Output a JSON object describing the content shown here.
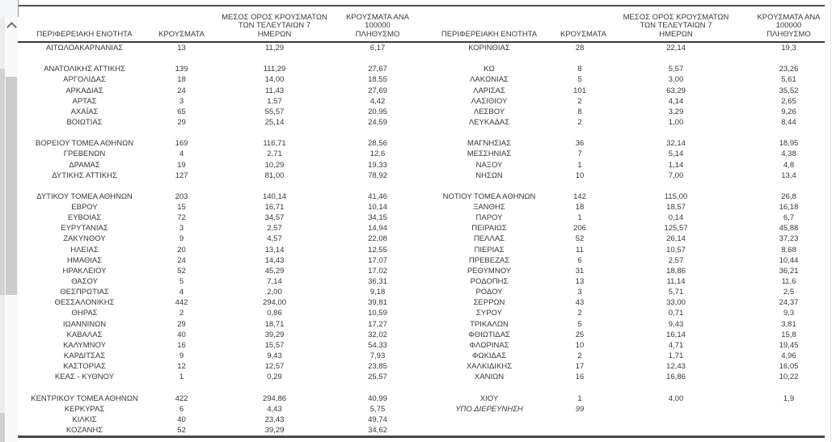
{
  "scrollbar": {
    "up_icon": "chevron-up"
  },
  "headers": {
    "region": "ΠΕΡΙΦΕΡΕΙΑΚΗ ΕΝΟΤΗΤΑ",
    "cases": "ΚΡΟΥΣΜΑΤΑ",
    "avg7": "ΜΕΣΟΣ ΟΡΟΣ ΚΡΟΥΣΜΑΤΩΝ\nΤΩΝ ΤΕΛΕΥΤΑΙΩΝ 7\nΗΜΕΡΩΝ",
    "per100k": "ΚΡΟΥΣΜΑΤΑ ΑΝΑ 100000\nΠΛΗΘΥΣΜΟ"
  },
  "rows": [
    {
      "l": {
        "region": "ΑΙΤΩΛΟΑΚΑΡΝΑΝΙΑΣ",
        "cases": "13",
        "avg7": "11,29",
        "per100k": "6,17"
      },
      "r": {
        "region": "ΚΟΡΙΝΘΙΑΣ",
        "cases": "28",
        "avg7": "22,14",
        "per100k": "19,3"
      }
    },
    {
      "l": {},
      "r": {}
    },
    {
      "l": {
        "region": "ΑΝΑΤΟΛΙΚΗΣ ΑΤΤΙΚΗΣ",
        "cases": "139",
        "avg7": "111,29",
        "per100k": "27,67"
      },
      "r": {
        "region": "ΚΩ",
        "cases": "8",
        "avg7": "5,57",
        "per100k": "23,26"
      }
    },
    {
      "l": {
        "region": "ΑΡΓΟΛΙΔΑΣ",
        "cases": "18",
        "avg7": "14,00",
        "per100k": "18,55"
      },
      "r": {
        "region": "ΛΑΚΩΝΙΑΣ",
        "cases": "5",
        "avg7": "3,00",
        "per100k": "5,61"
      }
    },
    {
      "l": {
        "region": "ΑΡΚΑΔΙΑΣ",
        "cases": "24",
        "avg7": "11,43",
        "per100k": "27,69"
      },
      "r": {
        "region": "ΛΑΡΙΣΑΣ",
        "cases": "101",
        "avg7": "63,29",
        "per100k": "35,52"
      }
    },
    {
      "l": {
        "region": "ΑΡΤΑΣ",
        "cases": "3",
        "avg7": "1,57",
        "per100k": "4,42"
      },
      "r": {
        "region": "ΛΑΣΙΘΙΟΥ",
        "cases": "2",
        "avg7": "4,14",
        "per100k": "2,65"
      }
    },
    {
      "l": {
        "region": "ΑΧΑΪΑΣ",
        "cases": "65",
        "avg7": "55,57",
        "per100k": "20,95"
      },
      "r": {
        "region": "ΛΕΣΒΟΥ",
        "cases": "8",
        "avg7": "3,29",
        "per100k": "9,26"
      }
    },
    {
      "l": {
        "region": "ΒΟΙΩΤΙΑΣ",
        "cases": "29",
        "avg7": "25,14",
        "per100k": "24,59"
      },
      "r": {
        "region": "ΛΕΥΚΑΔΑΣ",
        "cases": "2",
        "avg7": "1,00",
        "per100k": "8,44"
      }
    },
    {
      "l": {},
      "r": {}
    },
    {
      "l": {
        "region": "ΒΟΡΕΙΟΥ ΤΟΜΕΑ ΑΘΗΝΩΝ",
        "cases": "169",
        "avg7": "116,71",
        "per100k": "28,56"
      },
      "r": {
        "region": "ΜΑΓΝΗΣΙΑΣ",
        "cases": "36",
        "avg7": "32,14",
        "per100k": "18,95"
      }
    },
    {
      "l": {
        "region": "ΓΡΕΒΕΝΩΝ",
        "cases": "4",
        "avg7": "2,71",
        "per100k": "12,6"
      },
      "r": {
        "region": "ΜΕΣΣΗΝΙΑΣ",
        "cases": "7",
        "avg7": "5,14",
        "per100k": "4,38"
      }
    },
    {
      "l": {
        "region": "ΔΡΑΜΑΣ",
        "cases": "19",
        "avg7": "10,29",
        "per100k": "19,33"
      },
      "r": {
        "region": "ΝΑΞΟΥ",
        "cases": "1",
        "avg7": "1,14",
        "per100k": "4,8"
      }
    },
    {
      "l": {
        "region": "ΔΥΤΙΚΗΣ ΑΤΤΙΚΗΣ",
        "cases": "127",
        "avg7": "81,00",
        "per100k": "78,92"
      },
      "r": {
        "region": "ΝΗΣΩΝ",
        "cases": "10",
        "avg7": "7,00",
        "per100k": "13,4"
      }
    },
    {
      "l": {},
      "r": {}
    },
    {
      "l": {
        "region": "ΔΥΤΙΚΟΥ ΤΟΜΕΑ ΑΘΗΝΩΝ",
        "cases": "203",
        "avg7": "140,14",
        "per100k": "41,46"
      },
      "r": {
        "region": "ΝΟΤΙΟΥ ΤΟΜΕΑ ΑΘΗΝΩΝ",
        "cases": "142",
        "avg7": "115,00",
        "per100k": "26,8"
      }
    },
    {
      "l": {
        "region": "ΕΒΡΟΥ",
        "cases": "15",
        "avg7": "16,71",
        "per100k": "10,14"
      },
      "r": {
        "region": "ΞΑΝΘΗΣ",
        "cases": "18",
        "avg7": "18,57",
        "per100k": "16,18"
      }
    },
    {
      "l": {
        "region": "ΕΥΒΟΙΑΣ",
        "cases": "72",
        "avg7": "34,57",
        "per100k": "34,15"
      },
      "r": {
        "region": "ΠΑΡΟΥ",
        "cases": "1",
        "avg7": "0,14",
        "per100k": "6,7"
      }
    },
    {
      "l": {
        "region": "ΕΥΡΥΤΑΝΙΑΣ",
        "cases": "3",
        "avg7": "2,57",
        "per100k": "14,94"
      },
      "r": {
        "region": "ΠΕΙΡΑΙΩΣ",
        "cases": "206",
        "avg7": "125,57",
        "per100k": "45,88"
      }
    },
    {
      "l": {
        "region": "ΖΑΚΥΝΘΟΥ",
        "cases": "9",
        "avg7": "4,57",
        "per100k": "22,08"
      },
      "r": {
        "region": "ΠΕΛΛΑΣ",
        "cases": "52",
        "avg7": "26,14",
        "per100k": "37,23"
      }
    },
    {
      "l": {
        "region": "ΗΛΕΙΑΣ",
        "cases": "20",
        "avg7": "13,14",
        "per100k": "12,55"
      },
      "r": {
        "region": "ΠΙΕΡΙΑΣ",
        "cases": "11",
        "avg7": "10,57",
        "per100k": "8,68"
      }
    },
    {
      "l": {
        "region": "ΗΜΑΘΙΑΣ",
        "cases": "24",
        "avg7": "14,43",
        "per100k": "17,07"
      },
      "r": {
        "region": "ΠΡΕΒΕΖΑΣ",
        "cases": "6",
        "avg7": "2,57",
        "per100k": "10,44"
      }
    },
    {
      "l": {
        "region": "ΗΡΑΚΛΕΙΟΥ",
        "cases": "52",
        "avg7": "45,29",
        "per100k": "17,02"
      },
      "r": {
        "region": "ΡΕΘΥΜΝΟΥ",
        "cases": "31",
        "avg7": "18,86",
        "per100k": "36,21"
      }
    },
    {
      "l": {
        "region": "ΘΑΣΟΥ",
        "cases": "5",
        "avg7": "7,14",
        "per100k": "36,31"
      },
      "r": {
        "region": "ΡΟΔΟΠΗΣ",
        "cases": "13",
        "avg7": "11,14",
        "per100k": "11,6"
      }
    },
    {
      "l": {
        "region": "ΘΕΣΠΡΩΤΙΑΣ",
        "cases": "4",
        "avg7": "2,00",
        "per100k": "9,18"
      },
      "r": {
        "region": "ΡΟΔΟΥ",
        "cases": "3",
        "avg7": "5,71",
        "per100k": "2,5"
      }
    },
    {
      "l": {
        "region": "ΘΕΣΣΑΛΟΝΙΚΗΣ",
        "cases": "442",
        "avg7": "294,00",
        "per100k": "39,81"
      },
      "r": {
        "region": "ΣΕΡΡΩΝ",
        "cases": "43",
        "avg7": "33,00",
        "per100k": "24,37"
      }
    },
    {
      "l": {
        "region": "ΘΗΡΑΣ",
        "cases": "2",
        "avg7": "0,86",
        "per100k": "10,59"
      },
      "r": {
        "region": "ΣΥΡΟΥ",
        "cases": "2",
        "avg7": "0,71",
        "per100k": "9,3"
      }
    },
    {
      "l": {
        "region": "ΙΩΑΝΝΙΝΩΝ",
        "cases": "29",
        "avg7": "18,71",
        "per100k": "17,27"
      },
      "r": {
        "region": "ΤΡΙΚΑΛΩΝ",
        "cases": "5",
        "avg7": "9,43",
        "per100k": "3,81"
      }
    },
    {
      "l": {
        "region": "ΚΑΒΑΛΑΣ",
        "cases": "40",
        "avg7": "39,29",
        "per100k": "32,02"
      },
      "r": {
        "region": "ΦΘΙΩΤΙΔΑΣ",
        "cases": "25",
        "avg7": "16,14",
        "per100k": "15,8"
      }
    },
    {
      "l": {
        "region": "ΚΑΛΥΜΝΟΥ",
        "cases": "16",
        "avg7": "15,57",
        "per100k": "54,33"
      },
      "r": {
        "region": "ΦΛΩΡΙΝΑΣ",
        "cases": "10",
        "avg7": "4,71",
        "per100k": "19,45"
      }
    },
    {
      "l": {
        "region": "ΚΑΡΔΙΤΣΑΣ",
        "cases": "9",
        "avg7": "9,43",
        "per100k": "7,93"
      },
      "r": {
        "region": "ΦΩΚΙΔΑΣ",
        "cases": "2",
        "avg7": "1,71",
        "per100k": "4,96"
      }
    },
    {
      "l": {
        "region": "ΚΑΣΤΟΡΙΑΣ",
        "cases": "12",
        "avg7": "12,57",
        "per100k": "23,85"
      },
      "r": {
        "region": "ΧΑΛΚΙΔΙΚΗΣ",
        "cases": "17",
        "avg7": "12,43",
        "per100k": "16,05"
      }
    },
    {
      "l": {
        "region": "ΚΕΑΣ - ΚΥΘΝΟΥ",
        "cases": "1",
        "avg7": "0,29",
        "per100k": "25,57"
      },
      "r": {
        "region": "ΧΑΝΙΩΝ",
        "cases": "16",
        "avg7": "16,86",
        "per100k": "10,22"
      }
    },
    {
      "l": {},
      "r": {}
    },
    {
      "l": {
        "region": "ΚΕΝΤΡΙΚΟΥ ΤΟΜΕΑ ΑΘΗΝΩΝ",
        "cases": "422",
        "avg7": "294,86",
        "per100k": "40,99"
      },
      "r": {
        "region": "ΧΙΟΥ",
        "cases": "1",
        "avg7": "4,00",
        "per100k": "1,9"
      }
    },
    {
      "l": {
        "region": "ΚΕΡΚΥΡΑΣ",
        "cases": "6",
        "avg7": "4,43",
        "per100k": "5,75"
      },
      "r": {
        "region": "ΥΠΟ ΔΙΕΡΕΥΝΗΣΗ",
        "cases": "99",
        "italic": true
      }
    },
    {
      "l": {
        "region": "ΚΙΛΚΙΣ",
        "cases": "40",
        "avg7": "23,43",
        "per100k": "49,74"
      },
      "r": {}
    },
    {
      "l": {
        "region": "ΚΟΖΑΝΗΣ",
        "cases": "52",
        "avg7": "39,29",
        "per100k": "34,62"
      },
      "r": {}
    }
  ]
}
